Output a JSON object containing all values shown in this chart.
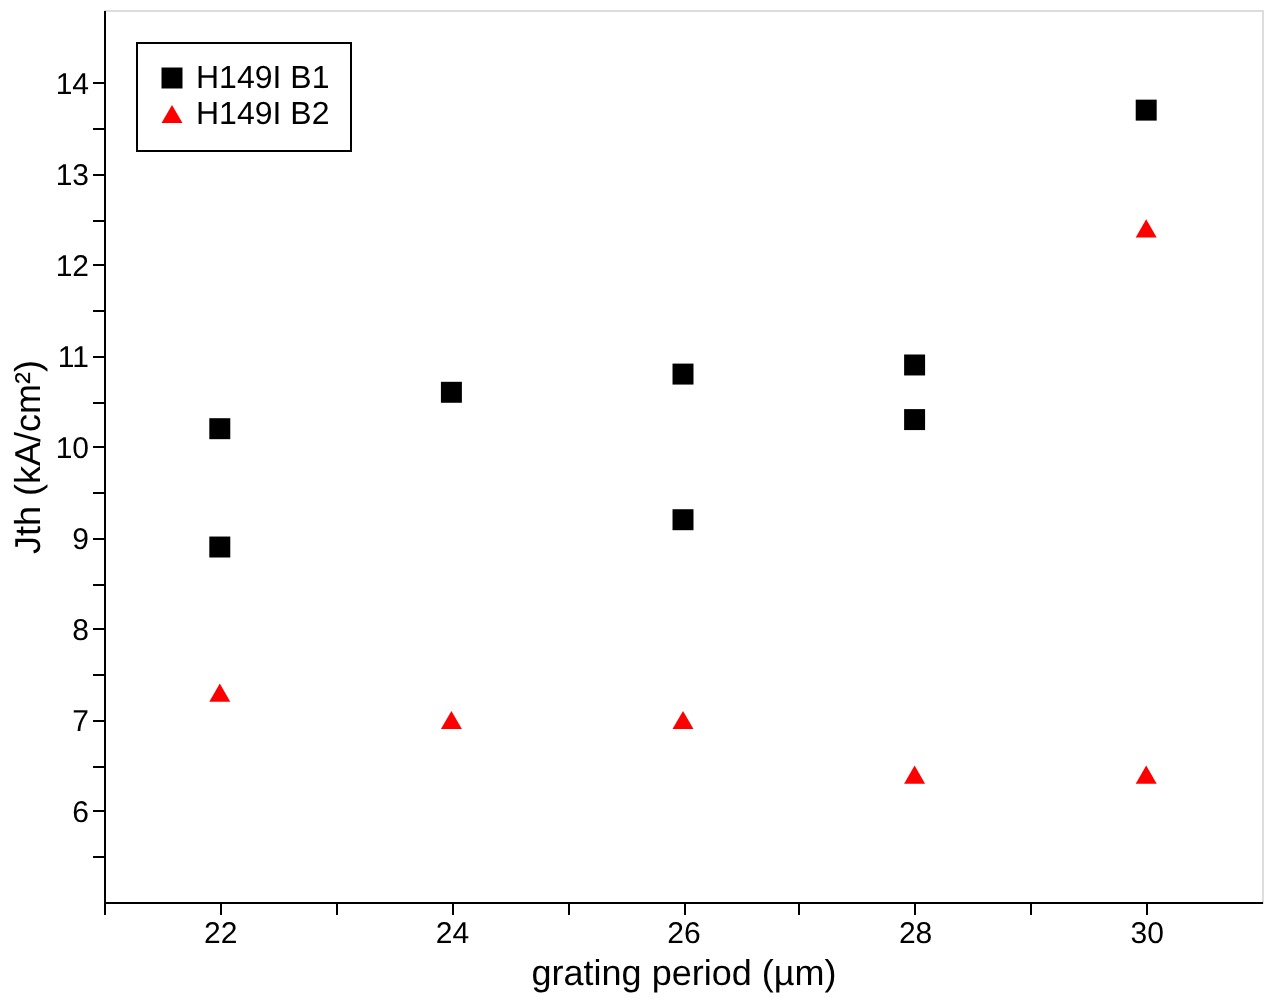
{
  "chart_data": {
    "type": "scatter",
    "xlabel": "grating period (µm)",
    "ylabel": "Jth (kA/cm²)",
    "series": [
      {
        "name": "H149I B1",
        "color": "#000000",
        "marker": "square",
        "x": [
          22,
          22,
          24,
          26,
          26,
          28,
          28,
          30
        ],
        "values": [
          10.2,
          8.9,
          10.6,
          10.8,
          9.2,
          10.9,
          10.3,
          13.7
        ]
      },
      {
        "name": "H149I B2",
        "color": "#ff0000",
        "marker": "triangle",
        "x": [
          22,
          24,
          26,
          28,
          30,
          30
        ],
        "values": [
          7.3,
          7.0,
          7.0,
          6.4,
          6.4,
          12.4
        ]
      }
    ],
    "xlim": [
      21,
      31
    ],
    "ylim": [
      5,
      14.8
    ],
    "xticks": [
      {
        "value": 21,
        "label": null
      },
      22,
      {
        "value": 23,
        "label": null
      },
      24,
      {
        "value": 25,
        "label": null
      },
      26,
      {
        "value": 27,
        "label": null
      },
      28,
      {
        "value": 29,
        "label": null
      },
      30
    ],
    "yticks": [
      {
        "value": 5.5,
        "label": null
      },
      6,
      {
        "value": 6.5,
        "label": null
      },
      7,
      {
        "value": 7.5,
        "label": null
      },
      8,
      {
        "value": 8.5,
        "label": null
      },
      9,
      {
        "value": 9.5,
        "label": null
      },
      10,
      {
        "value": 10.5,
        "label": null
      },
      11,
      {
        "value": 11.5,
        "label": null
      },
      12,
      {
        "value": 12.5,
        "label": null
      },
      13,
      {
        "value": 13.5,
        "label": null
      },
      14
    ],
    "grid": false,
    "legend": "top left"
  }
}
